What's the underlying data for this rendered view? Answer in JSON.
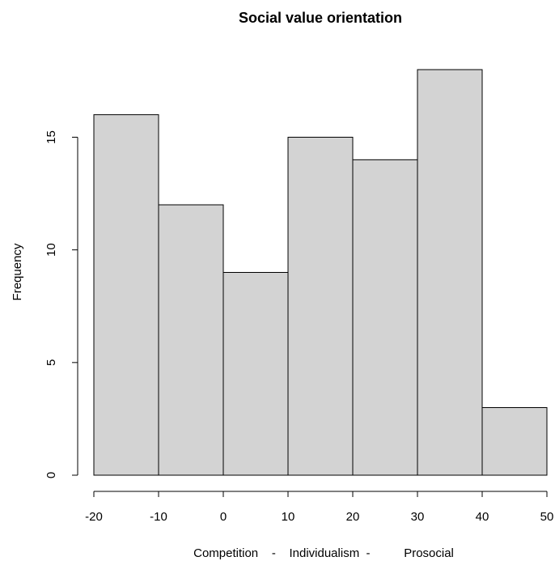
{
  "chart_data": {
    "type": "bar",
    "title": "Social value orientation",
    "xlabel": "Competition    -    Individualism  -          Prosocial",
    "ylabel": "Frequency",
    "bins": [
      {
        "from": -20,
        "to": -10,
        "count": 16
      },
      {
        "from": -10,
        "to": 0,
        "count": 12
      },
      {
        "from": 0,
        "to": 10,
        "count": 9
      },
      {
        "from": 10,
        "to": 20,
        "count": 15
      },
      {
        "from": 20,
        "to": 30,
        "count": 14
      },
      {
        "from": 30,
        "to": 40,
        "count": 18
      },
      {
        "from": 40,
        "to": 50,
        "count": 3
      }
    ],
    "xlim": [
      -20,
      50
    ],
    "ylim": [
      0,
      18
    ],
    "x_ticks": [
      -20,
      -10,
      0,
      10,
      20,
      30,
      40,
      50
    ],
    "y_ticks": [
      0,
      5,
      10,
      15
    ],
    "bar_color": "#d3d3d3",
    "grid": false
  }
}
